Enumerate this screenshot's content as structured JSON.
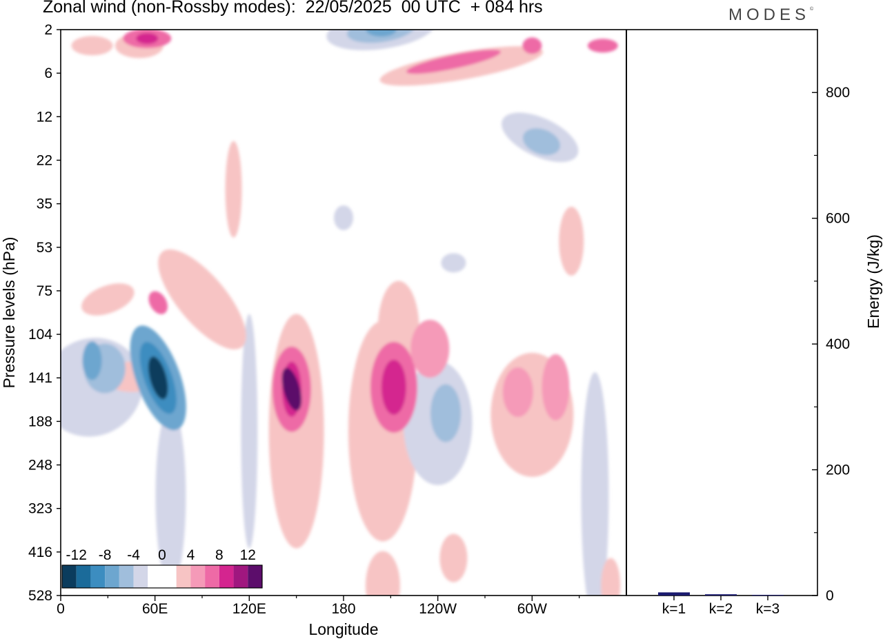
{
  "title": "Zonal wind (non-Rossby modes):  22/05/2025  00 UTC  + 084 hrs",
  "logo": "MODES",
  "logo_mark": "©",
  "chart_data": [
    {
      "type": "heatmap",
      "xlabel": "Longitude",
      "ylabel": "Pressure levels (hPa)",
      "x_ticks": [
        "0",
        "60E",
        "120E",
        "180",
        "120W",
        "60W"
      ],
      "y_ticks": [
        "2",
        "6",
        "12",
        "22",
        "35",
        "53",
        "75",
        "104",
        "141",
        "188",
        "248",
        "323",
        "416",
        "528"
      ],
      "colorbar": {
        "labels": [
          "-12",
          "-8",
          "-4",
          "0",
          "4",
          "8",
          "12"
        ],
        "colors": [
          "#0b3c5d",
          "#1b6b9a",
          "#3c8dc0",
          "#6da6cf",
          "#a0bedc",
          "#d3d6e8",
          "#ffffff",
          "#ffffff",
          "#f7c4c4",
          "#f59ab8",
          "#ee6aa6",
          "#d4258f",
          "#a0177f",
          "#5c0d6b"
        ]
      },
      "features": [
        {
          "lon": 62,
          "level": 141,
          "value": -14
        },
        {
          "lon": 28,
          "level": 132,
          "value": -8
        },
        {
          "lon": 147,
          "level": 152,
          "value": 10
        },
        {
          "lon": 212,
          "level": 150,
          "value": 8
        },
        {
          "lon": 235,
          "level": 115,
          "value": 5
        },
        {
          "lon": 245,
          "level": 178,
          "value": -6
        },
        {
          "lon": 291,
          "level": 155,
          "value": 5
        },
        {
          "lon": 315,
          "level": 150,
          "value": 5
        },
        {
          "lon": 204,
          "level": 2,
          "value": -8
        },
        {
          "lon": 55,
          "level": 2.5,
          "value": 8
        },
        {
          "lon": 306,
          "level": 17,
          "value": -6
        },
        {
          "lon": 250,
          "level": 4.5,
          "value": 6
        }
      ]
    },
    {
      "type": "bar",
      "ylabel": "Energy (J/kg)",
      "categories": [
        "k=1",
        "k=2",
        "k=3"
      ],
      "values": [
        5,
        2,
        1
      ],
      "ylim": [
        0,
        900
      ],
      "y_ticks": [
        0,
        200,
        400,
        600,
        800
      ],
      "bar_color": "#1a1a6e"
    }
  ]
}
